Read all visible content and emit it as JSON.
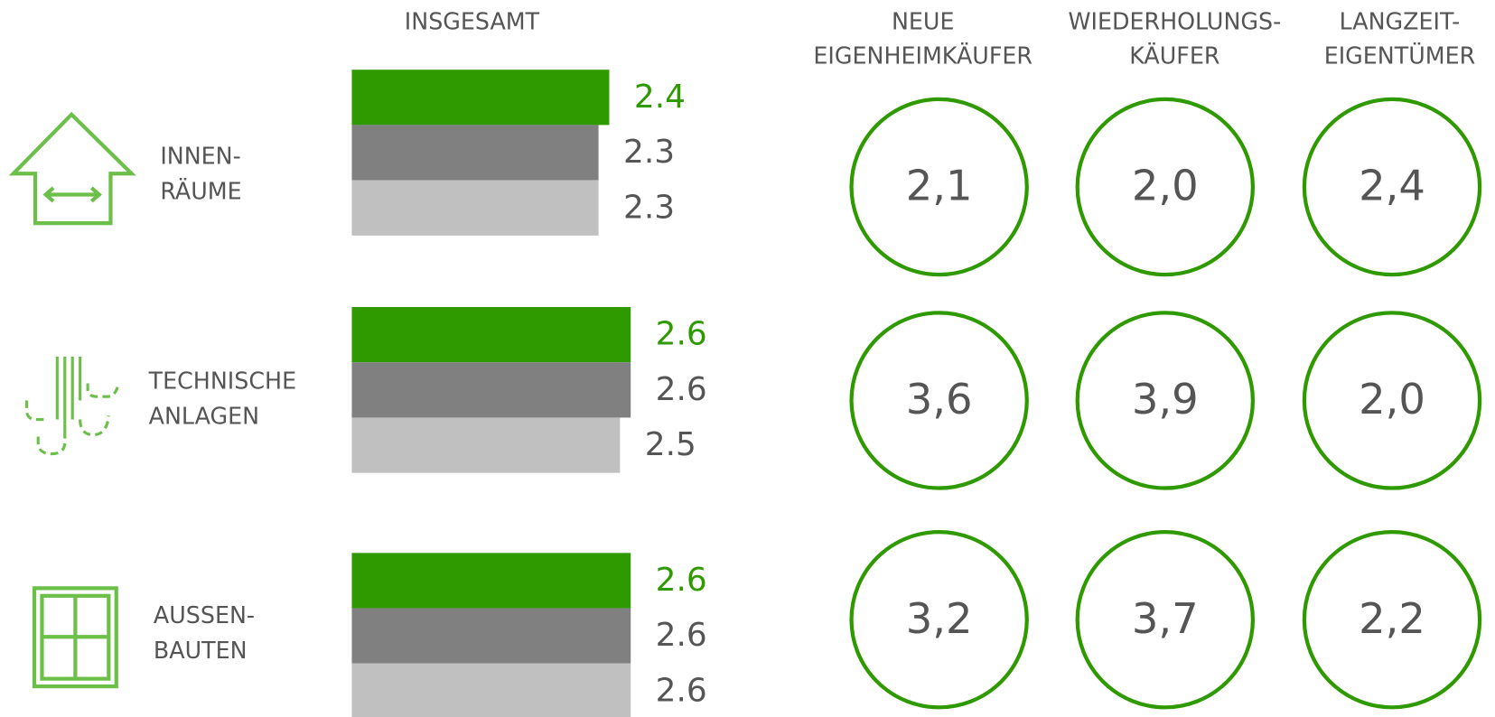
{
  "header": {
    "overall": "INSGESAMT",
    "groups": [
      [
        "NEUE",
        "EIGENHEIMKÄUFER"
      ],
      [
        "WIEDERHOLUNGS-",
        "KÄUFER"
      ],
      [
        "LANGZEIT-",
        "EIGENTÜMER"
      ]
    ]
  },
  "bar_colors": [
    "#2e9a00",
    "#808080",
    "#c0c0c0"
  ],
  "value_label_colors": [
    "#2e9a00",
    "#555555",
    "#555555"
  ],
  "circle_color": "#2e9a00",
  "rows": [
    {
      "label": [
        "INNEN-",
        "RÄUME"
      ],
      "bars": [
        2.4,
        2.3,
        2.3
      ],
      "scores": [
        {
          "value": 2.1,
          "label": "2,1"
        },
        {
          "value": 2.0,
          "label": "2,0"
        },
        {
          "value": 2.4,
          "label": "2,4"
        }
      ]
    },
    {
      "label": [
        "TECHNISCHE",
        "ANLAGEN"
      ],
      "bars": [
        2.6,
        2.6,
        2.5
      ],
      "scores": [
        {
          "value": 3.6,
          "label": "3,6"
        },
        {
          "value": 3.9,
          "label": "3,9"
        },
        {
          "value": 2.0,
          "label": "2,0"
        }
      ]
    },
    {
      "label": [
        "AUSSEN-",
        "BAUTEN"
      ],
      "bars": [
        2.6,
        2.6,
        2.6
      ],
      "scores": [
        {
          "value": 3.2,
          "label": "3,2"
        },
        {
          "value": 3.7,
          "label": "3,7"
        },
        {
          "value": 2.2,
          "label": "2,2"
        }
      ]
    }
  ]
}
